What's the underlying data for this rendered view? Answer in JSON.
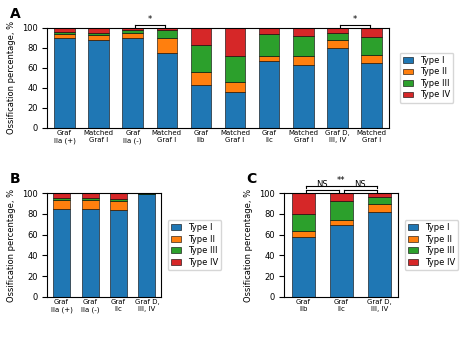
{
  "chart_data": [
    {
      "type": "bar",
      "stacked": true,
      "title": "A",
      "ylabel": "Ossification percentage, %",
      "categories": [
        "Graf\nIIa (+)",
        "Matched\nGraf I",
        "Graf\nIIa (-)",
        "Matched\nGraf I",
        "Graf\nIIb",
        "Matched\nGraf I",
        "Graf\nIIc",
        "Matched\nGraf I",
        "Graf D,\nIII, IV",
        "Matched\nGraf I"
      ],
      "series": [
        {
          "name": "Type I",
          "values": [
            90,
            88,
            90,
            75,
            43,
            36,
            67,
            63,
            80,
            65
          ]
        },
        {
          "name": "Type II",
          "values": [
            4,
            5,
            5,
            15,
            13,
            10,
            5,
            9,
            8,
            8
          ]
        },
        {
          "name": "Type III",
          "values": [
            2,
            2,
            3,
            8,
            27,
            26,
            22,
            20,
            7,
            18
          ]
        },
        {
          "name": "Type IV",
          "values": [
            4,
            5,
            2,
            2,
            17,
            28,
            6,
            8,
            5,
            9
          ]
        }
      ],
      "ylim": [
        0,
        100
      ],
      "yticks": [
        0,
        20,
        40,
        60,
        80,
        100
      ],
      "grid": false,
      "legend": "right",
      "annotations": [
        {
          "text": "*",
          "x": [
            2,
            3
          ]
        },
        {
          "text": "*",
          "x": [
            8,
            9
          ]
        }
      ]
    },
    {
      "type": "bar",
      "stacked": true,
      "title": "B",
      "ylabel": "Ossification percentage, %",
      "categories": [
        "Graf\nIIa (+)",
        "Graf\nIIa (-)",
        "Graf\nIIc",
        "Graf D,\nIII, IV"
      ],
      "series": [
        {
          "name": "Type I",
          "values": [
            85,
            85,
            84,
            99
          ]
        },
        {
          "name": "Type II",
          "values": [
            8,
            8,
            8,
            0.5
          ]
        },
        {
          "name": "Type III",
          "values": [
            2,
            2,
            2,
            0.3
          ]
        },
        {
          "name": "Type IV",
          "values": [
            5,
            5,
            6,
            0.2
          ]
        }
      ],
      "ylim": [
        0,
        100
      ],
      "yticks": [
        0,
        20,
        40,
        60,
        80,
        100
      ],
      "grid": false,
      "legend": "right"
    },
    {
      "type": "bar",
      "stacked": true,
      "title": "C",
      "ylabel": "Ossification percentage, %",
      "categories": [
        "Graf\nIIb",
        "Graf\nIIc",
        "Graf D,\nIII, IV"
      ],
      "series": [
        {
          "name": "Type I",
          "values": [
            58,
            69,
            82
          ]
        },
        {
          "name": "Type II",
          "values": [
            5,
            5,
            8
          ]
        },
        {
          "name": "Type III",
          "values": [
            17,
            18,
            6
          ]
        },
        {
          "name": "Type IV",
          "values": [
            20,
            8,
            4
          ]
        }
      ],
      "ylim": [
        0,
        100
      ],
      "yticks": [
        0,
        20,
        40,
        60,
        80,
        100
      ],
      "grid": false,
      "legend": "right",
      "annotations": [
        {
          "text": "**",
          "x": [
            0,
            2
          ]
        },
        {
          "text": "NS",
          "x": [
            0,
            1
          ]
        },
        {
          "text": "NS",
          "x": [
            1,
            2
          ]
        }
      ]
    }
  ]
}
